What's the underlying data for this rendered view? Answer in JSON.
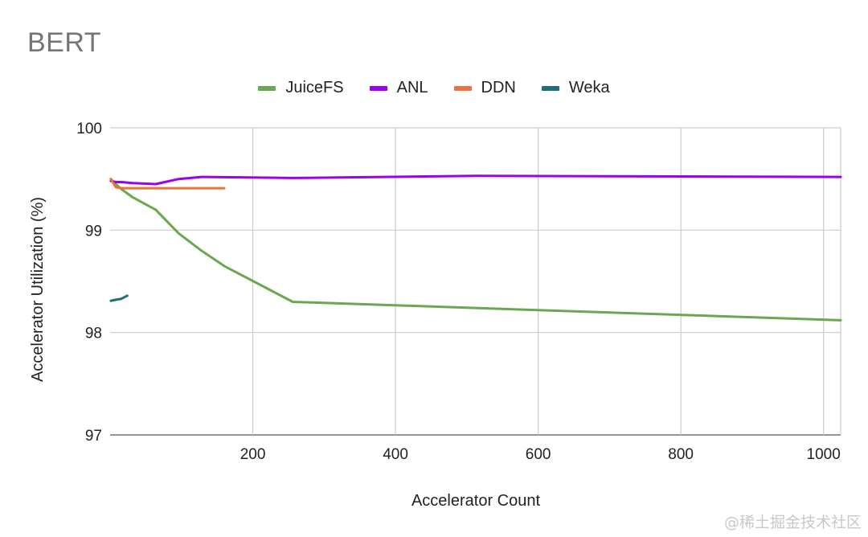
{
  "chart_data": {
    "type": "line",
    "title": "BERT",
    "xlabel": "Accelerator Count",
    "ylabel": "Accelerator Utilization (%)",
    "xlim": [
      0,
      1024
    ],
    "ylim": [
      97,
      100
    ],
    "xticks": [
      200,
      400,
      600,
      800,
      1000
    ],
    "yticks": [
      97,
      98,
      99,
      100
    ],
    "grid": true,
    "legend_position": "top",
    "series": [
      {
        "name": "JuiceFS",
        "color": "#6aa84f",
        "x": [
          1,
          8,
          16,
          32,
          64,
          96,
          128,
          160,
          256,
          512,
          1024
        ],
        "y": [
          99.5,
          99.45,
          99.4,
          99.32,
          99.2,
          98.97,
          98.8,
          98.65,
          98.3,
          98.24,
          98.12
        ]
      },
      {
        "name": "ANL",
        "color": "#9900ee",
        "x": [
          1,
          8,
          16,
          32,
          64,
          96,
          128,
          256,
          512,
          1024
        ],
        "y": [
          99.48,
          99.47,
          99.47,
          99.46,
          99.45,
          99.5,
          99.52,
          99.51,
          99.53,
          99.52
        ]
      },
      {
        "name": "DDN",
        "color": "#e8743b",
        "x": [
          1,
          8,
          16,
          32,
          64,
          96,
          128,
          160
        ],
        "y": [
          99.5,
          99.42,
          99.41,
          99.41,
          99.41,
          99.41,
          99.41,
          99.41
        ]
      },
      {
        "name": "Weka",
        "color": "#1f6f78",
        "x": [
          1,
          8,
          16,
          24
        ],
        "y": [
          98.31,
          98.32,
          98.33,
          98.36
        ]
      }
    ]
  },
  "watermark": "@稀土掘金技术社区"
}
